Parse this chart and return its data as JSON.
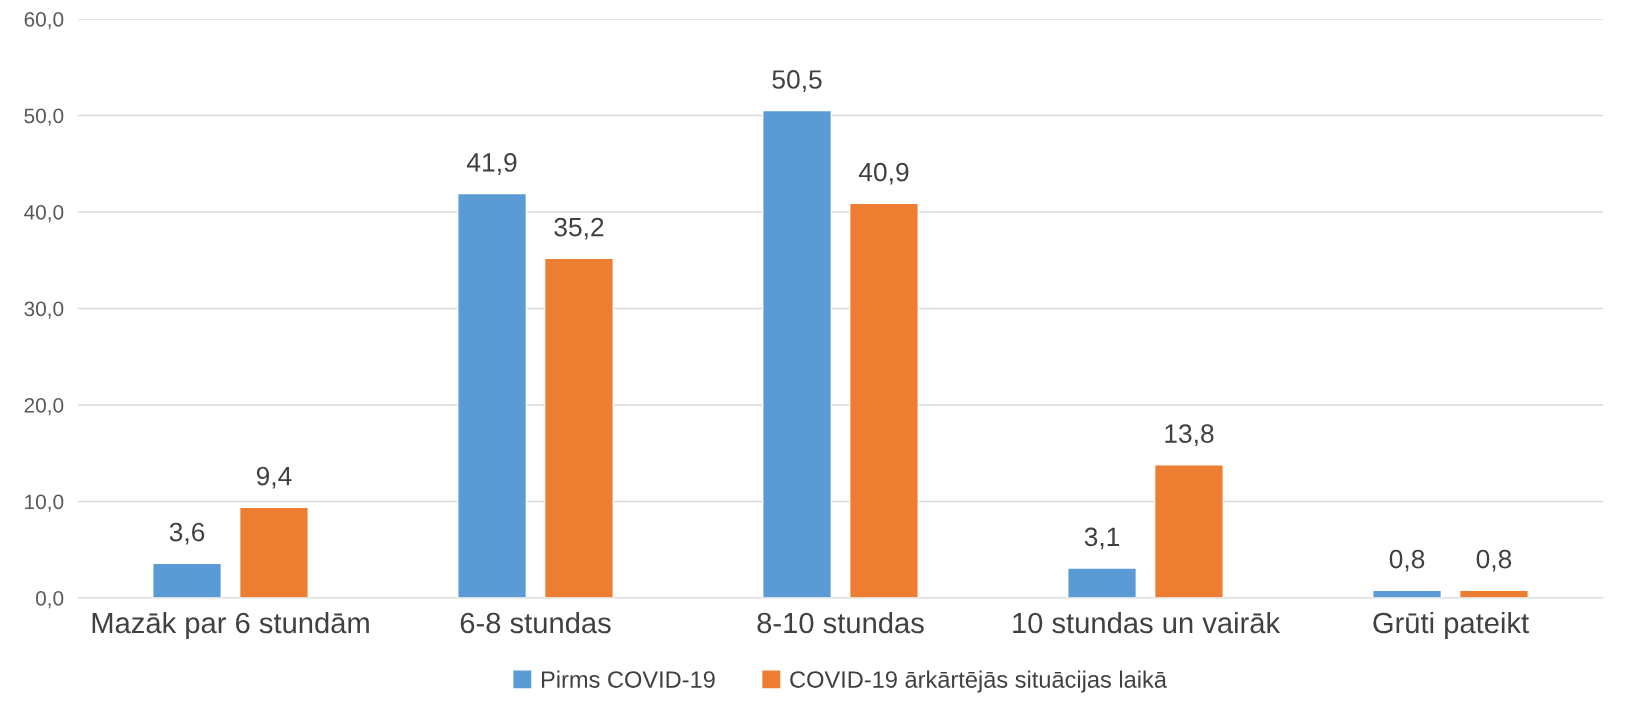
{
  "chart_data": {
    "type": "bar",
    "categories": [
      "Mazāk par 6 stundām",
      "6-8 stundas",
      "8-10 stundas",
      "10 stundas un vairāk",
      "Grūti pateikt"
    ],
    "series": [
      {
        "name": "Pirms COVID-19",
        "color": "#5b9bd5",
        "values": [
          3.6,
          41.9,
          50.5,
          3.1,
          0.8
        ],
        "value_labels": [
          "3,6",
          "41,9",
          "50,5",
          "3,1",
          "0,8"
        ]
      },
      {
        "name": "COVID-19 ārkārtējās situācijas laikā",
        "color": "#ed7d31",
        "values": [
          9.4,
          35.2,
          40.9,
          13.8,
          0.8
        ],
        "value_labels": [
          "9,4",
          "35,2",
          "40,9",
          "13,8",
          "0,8"
        ]
      }
    ],
    "ylim": [
      0,
      60
    ],
    "yticks": [
      {
        "value": 0,
        "label": "0,0"
      },
      {
        "value": 10,
        "label": "10,0"
      },
      {
        "value": 20,
        "label": "20,0"
      },
      {
        "value": 30,
        "label": "30,0"
      },
      {
        "value": 40,
        "label": "40,0"
      },
      {
        "value": 50,
        "label": "50,0"
      },
      {
        "value": 60,
        "label": "60,0"
      }
    ],
    "grid": "y",
    "legend": "bottom"
  }
}
